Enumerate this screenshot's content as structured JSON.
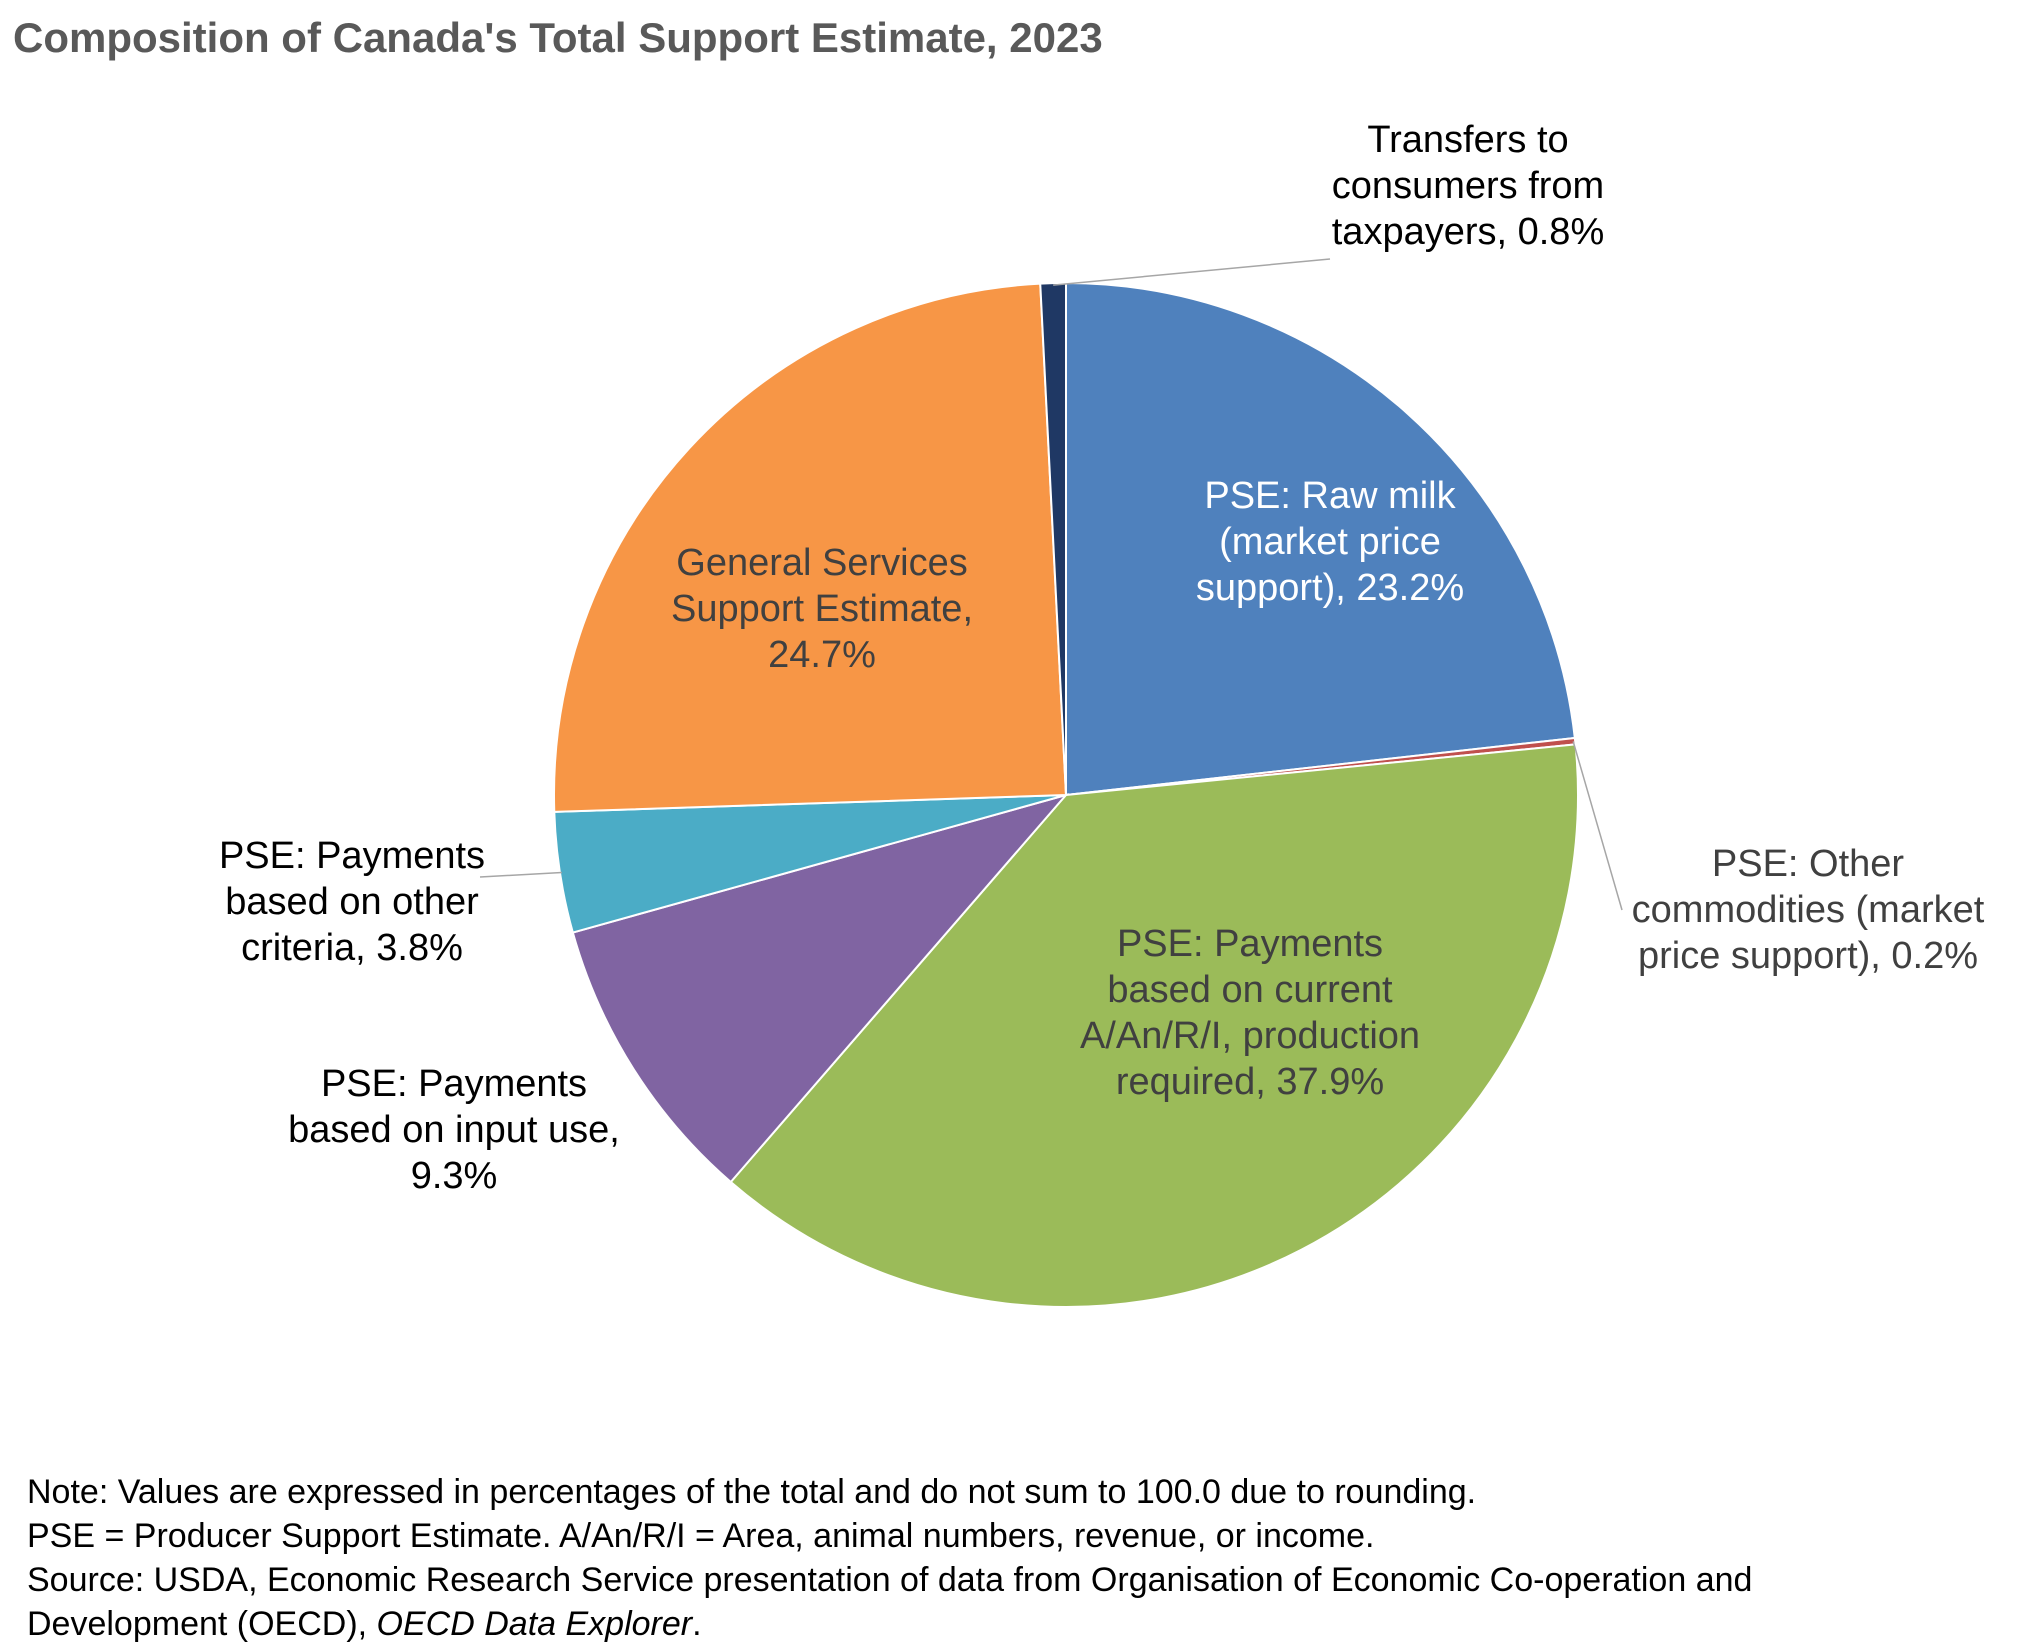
{
  "chart_data": {
    "type": "pie",
    "title": "Composition of Canada's Total Support Estimate, 2023",
    "start_angle_deg": 0,
    "direction": "clockwise",
    "slices": [
      {
        "id": "raw-milk",
        "lines": [
          "PSE: Raw milk",
          "(market price",
          "support), 23.2%"
        ],
        "value": 23.2,
        "color": "#4F81BD",
        "label_color": "#ffffff"
      },
      {
        "id": "other-commodities",
        "lines": [
          "PSE: Other",
          "commodities (market",
          "price support), 0.2%"
        ],
        "value": 0.2,
        "color": "#C0504D",
        "label_color": "#404040"
      },
      {
        "id": "current-production",
        "lines": [
          "PSE: Payments",
          "based on current",
          "A/An/R/I, production",
          "required, 37.9%"
        ],
        "value": 37.9,
        "color": "#9BBB59",
        "label_color": "#404040"
      },
      {
        "id": "input-use",
        "lines": [
          "PSE: Payments",
          "based on input use,",
          "9.3%"
        ],
        "value": 9.3,
        "color": "#8064A2",
        "label_color": "#000000"
      },
      {
        "id": "other-criteria",
        "lines": [
          "PSE: Payments",
          "based on other",
          "criteria, 3.8%"
        ],
        "value": 3.8,
        "color": "#4BACC6",
        "label_color": "#000000"
      },
      {
        "id": "general-services",
        "lines": [
          "General Services",
          "Support Estimate,",
          "24.7%"
        ],
        "value": 24.7,
        "color": "#F79646",
        "label_color": "#404040"
      },
      {
        "id": "transfers-consumers",
        "lines": [
          "Transfers to",
          "consumers from",
          "taxpayers, 0.8%"
        ],
        "value": 0.8,
        "color": "#1F3864",
        "label_color": "#000000"
      }
    ]
  },
  "notes": {
    "line1": "Note: Values are expressed in percentages of the total and do not sum to 100.0 due to rounding.",
    "line2": "PSE = Producer Support Estimate. A/An/R/I = Area, animal numbers, revenue, or income.",
    "line3": "Source: USDA, Economic Research Service presentation of data from Organisation of Economic Co-operation and",
    "line4_prefix": "Development (OECD), ",
    "line4_italic": "OECD Data Explorer",
    "line4_suffix": "."
  }
}
